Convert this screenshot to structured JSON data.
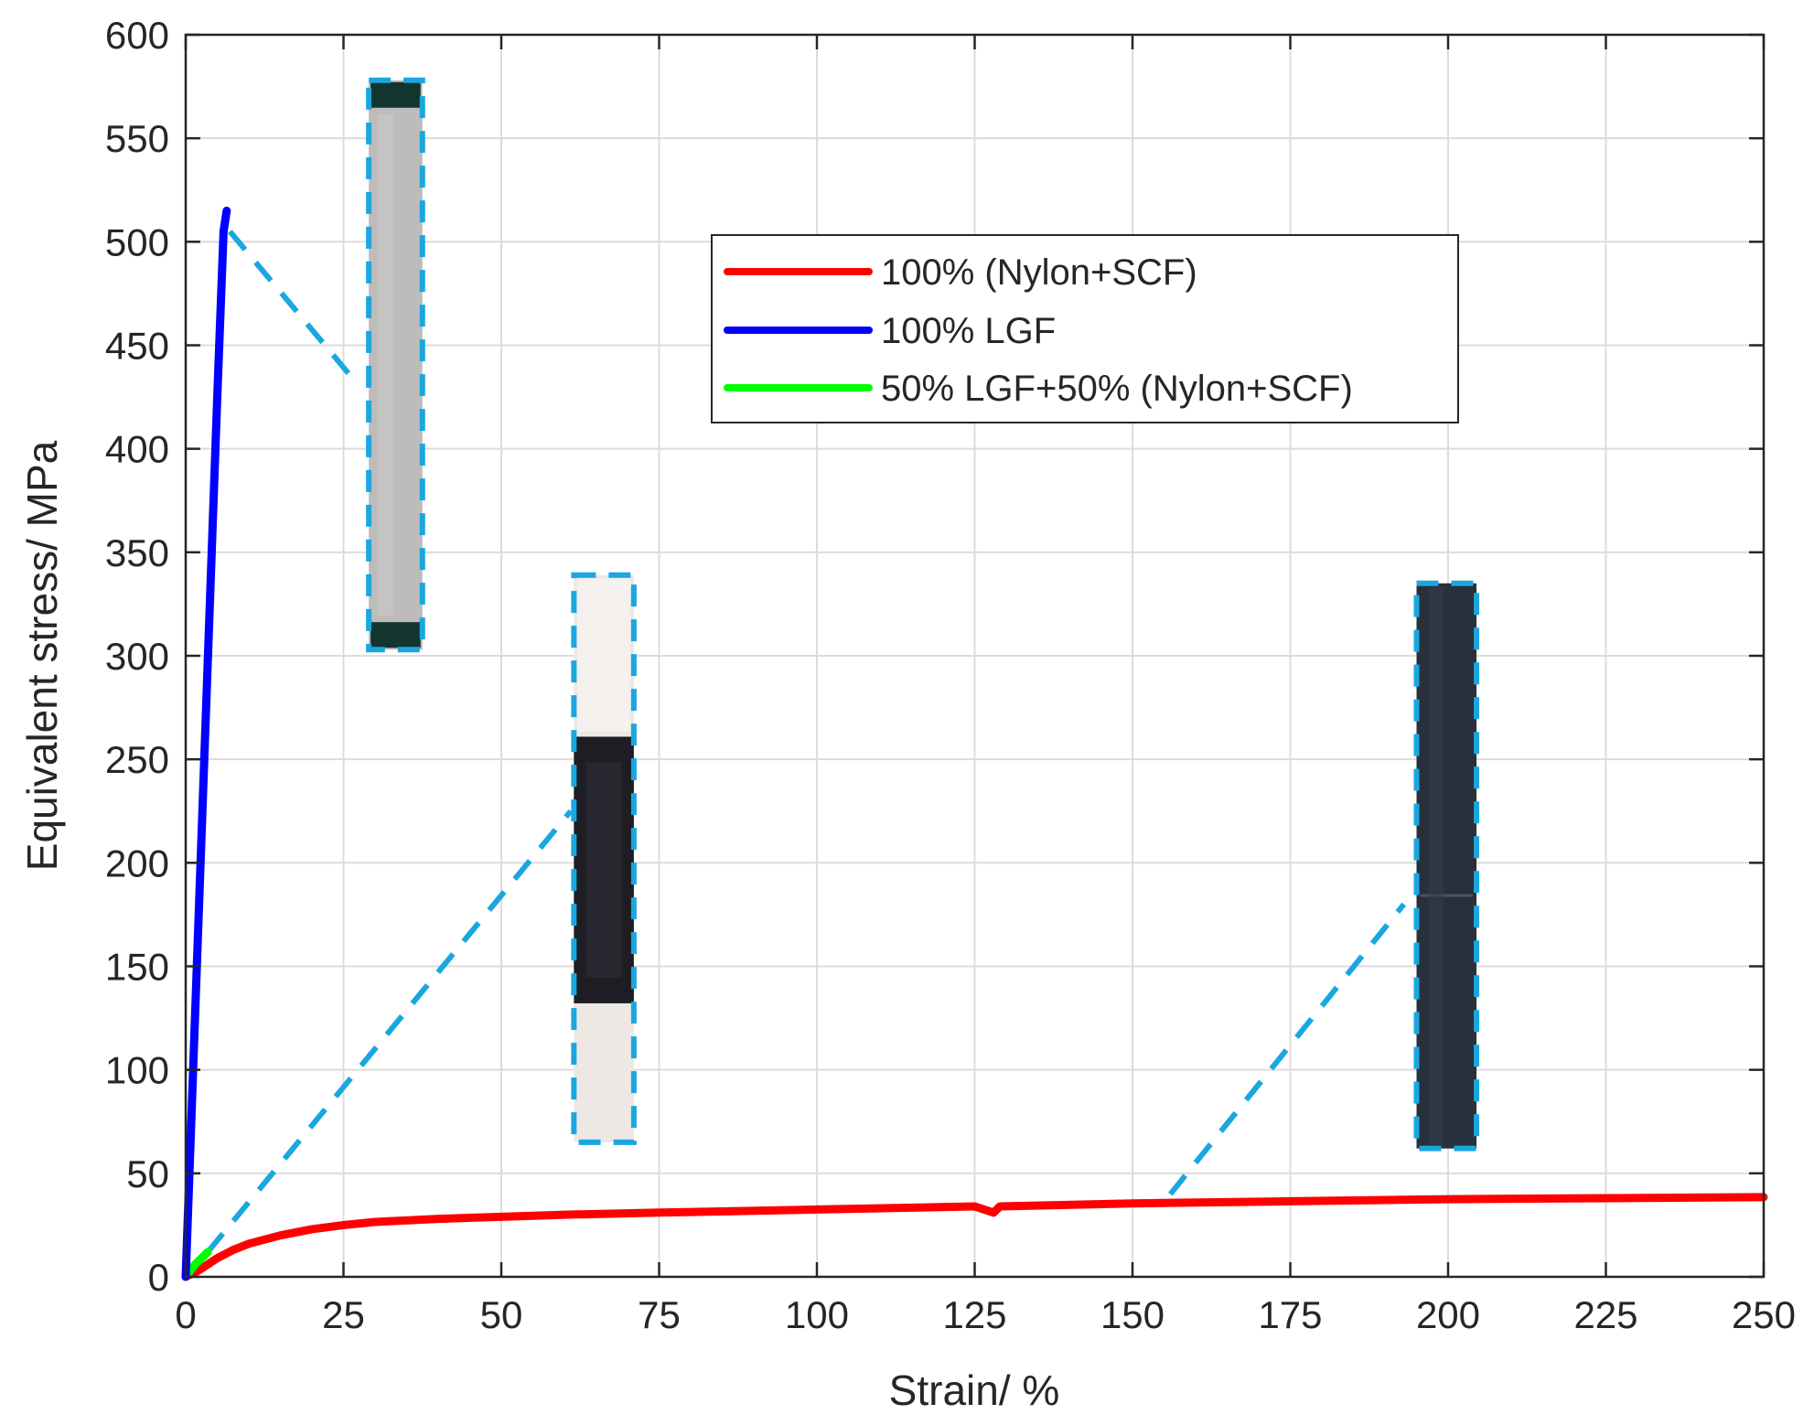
{
  "chart_data": {
    "type": "line",
    "title": "",
    "xlabel": "Strain/ %",
    "ylabel": "Equivalent stress/ MPa",
    "xlim": [
      0,
      250
    ],
    "ylim": [
      0,
      600
    ],
    "x_ticks": [
      0,
      25,
      50,
      75,
      100,
      125,
      150,
      175,
      200,
      225,
      250
    ],
    "y_ticks": [
      0,
      50,
      100,
      150,
      200,
      250,
      300,
      350,
      400,
      450,
      500,
      550,
      600
    ],
    "grid": true,
    "legend_position": "top-center",
    "series": [
      {
        "name": "100% (Nylon+SCF)",
        "color": "#ff0000",
        "x": [
          0,
          1,
          2,
          3,
          5,
          7.5,
          10,
          15,
          20,
          25,
          30,
          40,
          50,
          60,
          75,
          100,
          125,
          128,
          129,
          150,
          175,
          200,
          225,
          250
        ],
        "y": [
          0,
          1.5,
          3,
          5,
          9,
          13,
          16,
          20,
          23,
          25,
          26.5,
          28,
          29,
          30,
          31,
          32.5,
          34,
          31,
          34,
          35.5,
          36.5,
          37.5,
          38,
          38.5
        ]
      },
      {
        "name": "100% LGF",
        "color": "#0000ff",
        "x": [
          0,
          1,
          2,
          3,
          4,
          5,
          6,
          6.5
        ],
        "y": [
          0,
          85,
          170,
          255,
          340,
          425,
          505,
          515
        ]
      },
      {
        "name": "50% LGF+50% (Nylon+SCF)",
        "color": "#00ff00",
        "x": [
          0,
          0.5,
          1,
          1.5,
          2,
          2.5,
          3,
          3.5
        ],
        "y": [
          0,
          2,
          4,
          6,
          7.5,
          9,
          10.5,
          12
        ]
      }
    ],
    "annotations": [
      {
        "kind": "leader",
        "color": "#1aa7e0",
        "from": [
          7,
          505
        ],
        "to": [
          27,
          432
        ]
      },
      {
        "kind": "leader",
        "color": "#1aa7e0",
        "from": [
          3.5,
          12
        ],
        "to": [
          61,
          225
        ]
      },
      {
        "kind": "leader",
        "color": "#1aa7e0",
        "from": [
          156,
          40
        ],
        "to": [
          193,
          180
        ]
      }
    ],
    "insets": [
      {
        "name": "specimen-photo-lgf",
        "xrange": [
          29,
          37.5
        ],
        "yrange": [
          303,
          578
        ],
        "bg": "#bdbcba",
        "tone": "light"
      },
      {
        "name": "specimen-photo-hybrid",
        "xrange": [
          61.5,
          71
        ],
        "yrange": [
          65,
          339
        ],
        "bg": "#ece8e4",
        "tone": "mixed"
      },
      {
        "name": "specimen-photo-nylon-scf",
        "xrange": [
          195,
          204.5
        ],
        "yrange": [
          62,
          335
        ],
        "bg": "#27303b",
        "tone": "dark"
      }
    ]
  }
}
